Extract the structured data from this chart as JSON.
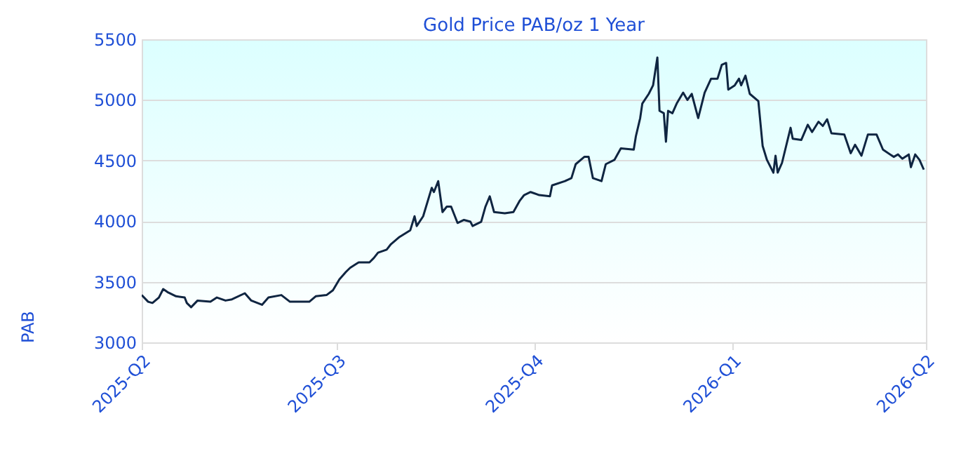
{
  "chart_data": {
    "type": "line",
    "title": "Gold Price PAB/oz 1 Year",
    "ylabel": "PAB",
    "x": [
      "2025-04-01",
      "2025-04-04",
      "2025-04-06",
      "2025-04-09",
      "2025-04-11",
      "2025-04-13",
      "2025-04-17",
      "2025-04-21",
      "2025-04-22",
      "2025-04-24",
      "2025-04-27",
      "2025-05-03",
      "2025-05-06",
      "2025-05-10",
      "2025-05-13",
      "2025-05-19",
      "2025-05-22",
      "2025-05-27",
      "2025-05-30",
      "2025-06-05",
      "2025-06-09",
      "2025-06-18",
      "2025-06-21",
      "2025-06-26",
      "2025-06-29",
      "2025-07-02",
      "2025-07-05",
      "2025-07-07",
      "2025-07-11",
      "2025-07-16",
      "2025-07-18",
      "2025-07-20",
      "2025-07-24",
      "2025-07-26",
      "2025-07-30",
      "2025-08-04",
      "2025-08-06",
      "2025-08-07",
      "2025-08-10",
      "2025-08-14",
      "2025-08-15",
      "2025-08-17",
      "2025-08-19",
      "2025-08-21",
      "2025-08-23",
      "2025-08-26",
      "2025-08-29",
      "2025-09-01",
      "2025-09-02",
      "2025-09-06",
      "2025-09-08",
      "2025-09-10",
      "2025-09-12",
      "2025-09-17",
      "2025-09-21",
      "2025-09-24",
      "2025-09-26",
      "2025-09-29",
      "2025-10-03",
      "2025-10-08",
      "2025-10-09",
      "2025-10-15",
      "2025-10-18",
      "2025-10-20",
      "2025-10-24",
      "2025-10-26",
      "2025-10-28",
      "2025-11-01",
      "2025-11-03",
      "2025-11-07",
      "2025-11-10",
      "2025-11-16",
      "2025-11-17",
      "2025-11-19",
      "2025-11-20",
      "2025-11-23",
      "2025-11-25",
      "2025-11-27",
      "2025-11-28",
      "2025-11-30",
      "2025-12-01",
      "2025-12-02",
      "2025-12-04",
      "2025-12-06",
      "2025-12-09",
      "2025-12-11",
      "2025-12-13",
      "2025-12-16",
      "2025-12-19",
      "2025-12-22",
      "2025-12-25",
      "2025-12-27",
      "2025-12-29",
      "2025-12-30",
      "2026-01-02",
      "2026-01-04",
      "2026-01-05",
      "2026-01-07",
      "2026-01-09",
      "2026-01-13",
      "2026-01-15",
      "2026-01-17",
      "2026-01-20",
      "2026-01-21",
      "2026-01-22",
      "2026-01-24",
      "2026-01-28",
      "2026-01-29",
      "2026-02-02",
      "2026-02-05",
      "2026-02-07",
      "2026-02-10",
      "2026-02-12",
      "2026-02-14",
      "2026-02-16",
      "2026-02-22",
      "2026-02-25",
      "2026-02-27",
      "2026-03-02",
      "2026-03-05",
      "2026-03-09",
      "2026-03-12",
      "2026-03-17",
      "2026-03-19",
      "2026-03-21",
      "2026-03-24",
      "2026-03-25",
      "2026-03-27",
      "2026-03-29",
      "2026-03-31"
    ],
    "series": [
      {
        "color": "#0f2541",
        "values": [
          3390,
          3335,
          3325,
          3370,
          3440,
          3415,
          3380,
          3370,
          3325,
          3290,
          3345,
          3335,
          3370,
          3345,
          3355,
          3405,
          3345,
          3310,
          3370,
          3390,
          3335,
          3335,
          3380,
          3390,
          3430,
          3520,
          3580,
          3615,
          3660,
          3660,
          3695,
          3740,
          3765,
          3810,
          3870,
          3925,
          4040,
          3960,
          4040,
          4275,
          4240,
          4330,
          4075,
          4120,
          4120,
          3985,
          4010,
          3995,
          3960,
          3995,
          4120,
          4205,
          4075,
          4065,
          4075,
          4170,
          4215,
          4240,
          4215,
          4205,
          4295,
          4330,
          4355,
          4470,
          4530,
          4530,
          4355,
          4330,
          4470,
          4505,
          4600,
          4590,
          4700,
          4850,
          4970,
          5050,
          5120,
          5350,
          4910,
          4890,
          4655,
          4910,
          4890,
          4970,
          5060,
          5000,
          5050,
          4850,
          5060,
          5175,
          5175,
          5290,
          5305,
          5085,
          5120,
          5175,
          5120,
          5200,
          5050,
          4990,
          4620,
          4505,
          4400,
          4540,
          4400,
          4480,
          4770,
          4680,
          4670,
          4795,
          4735,
          4820,
          4785,
          4840,
          4725,
          4715,
          4560,
          4630,
          4540,
          4715,
          4715,
          4590,
          4530,
          4550,
          4515,
          4550,
          4445,
          4550,
          4505,
          4425
        ]
      }
    ],
    "xlim": [
      "2025-04-01",
      "2026-04-01"
    ],
    "xticks": [
      {
        "value": "2025-04-01",
        "label": "2025-Q2"
      },
      {
        "value": "2025-07-01",
        "label": "2025-Q3"
      },
      {
        "value": "2025-10-01",
        "label": "2025-Q4"
      },
      {
        "value": "2026-01-01",
        "label": "2026-Q1"
      },
      {
        "value": "2026-04-01",
        "label": "2026-Q2"
      }
    ],
    "ylim": [
      3000,
      5500
    ],
    "yticks": [
      3000,
      3500,
      4000,
      4500,
      5000,
      5500
    ],
    "grid": "y",
    "marker": "none",
    "line_style": "solid"
  }
}
